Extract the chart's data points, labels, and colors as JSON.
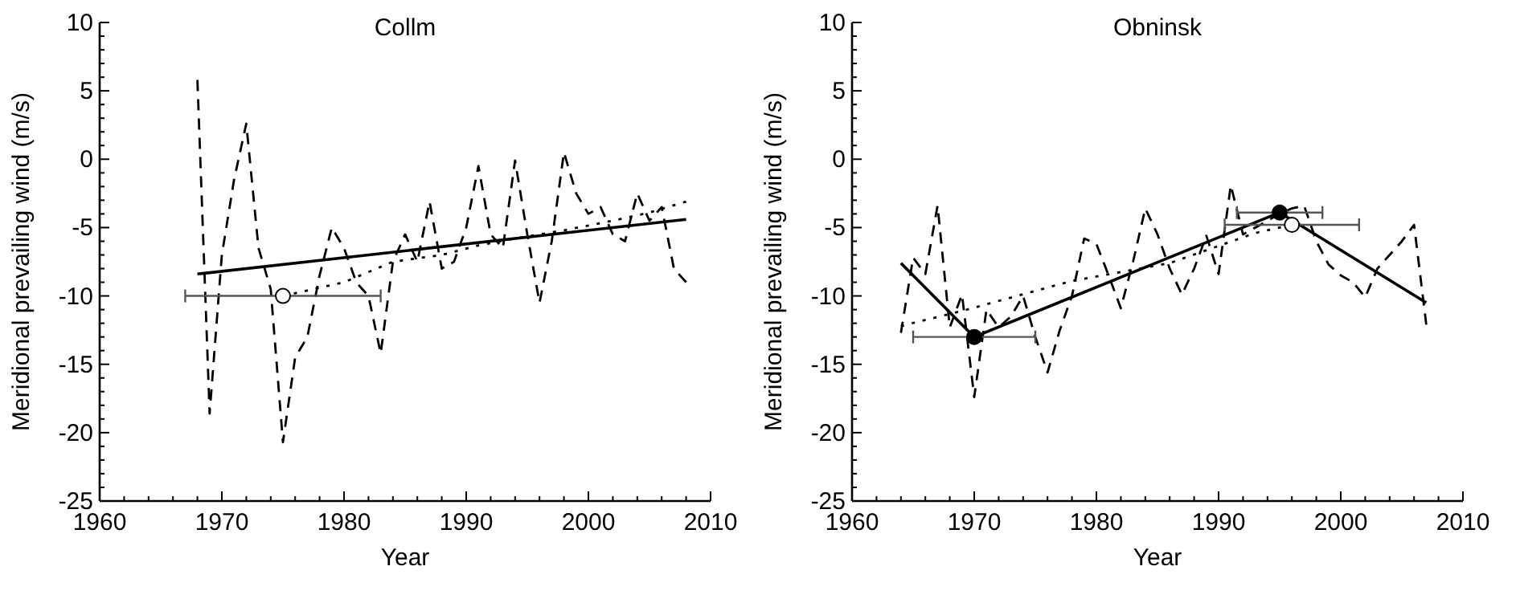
{
  "chart_data": [
    {
      "type": "line",
      "title": "Collm",
      "xlabel": "Year",
      "ylabel": "Meridional prevailing wind (m/s)",
      "xlim": [
        1960,
        2010
      ],
      "ylim": [
        -25,
        10
      ],
      "xticks": [
        1960,
        {
          "value": 1962,
          "label": null
        },
        {
          "value": 1964,
          "label": null
        },
        {
          "value": 1966,
          "label": null
        },
        {
          "value": 1968,
          "label": null
        },
        1970,
        {
          "value": 1972,
          "label": null
        },
        {
          "value": 1974,
          "label": null
        },
        {
          "value": 1976,
          "label": null
        },
        {
          "value": 1978,
          "label": null
        },
        1980,
        {
          "value": 1982,
          "label": null
        },
        {
          "value": 1984,
          "label": null
        },
        {
          "value": 1986,
          "label": null
        },
        {
          "value": 1988,
          "label": null
        },
        1990,
        {
          "value": 1992,
          "label": null
        },
        {
          "value": 1994,
          "label": null
        },
        {
          "value": 1996,
          "label": null
        },
        {
          "value": 1998,
          "label": null
        },
        2000,
        {
          "value": 2002,
          "label": null
        },
        {
          "value": 2004,
          "label": null
        },
        {
          "value": 2006,
          "label": null
        },
        {
          "value": 2008,
          "label": null
        },
        2010
      ],
      "yticks": [
        -25,
        {
          "value": -24,
          "label": null
        },
        {
          "value": -23,
          "label": null
        },
        {
          "value": -22,
          "label": null
        },
        {
          "value": -21,
          "label": null
        },
        -20,
        {
          "value": -19,
          "label": null
        },
        {
          "value": -18,
          "label": null
        },
        {
          "value": -17,
          "label": null
        },
        {
          "value": -16,
          "label": null
        },
        -15,
        {
          "value": -14,
          "label": null
        },
        {
          "value": -13,
          "label": null
        },
        {
          "value": -12,
          "label": null
        },
        {
          "value": -11,
          "label": null
        },
        -10,
        {
          "value": -9,
          "label": null
        },
        {
          "value": -8,
          "label": null
        },
        {
          "value": -7,
          "label": null
        },
        {
          "value": -6,
          "label": null
        },
        -5,
        {
          "value": -4,
          "label": null
        },
        {
          "value": -3,
          "label": null
        },
        {
          "value": -2,
          "label": null
        },
        {
          "value": -1,
          "label": null
        },
        0,
        {
          "value": 1,
          "label": null
        },
        {
          "value": 2,
          "label": null
        },
        {
          "value": 3,
          "label": null
        },
        {
          "value": 4,
          "label": null
        },
        5,
        {
          "value": 6,
          "label": null
        },
        {
          "value": 7,
          "label": null
        },
        {
          "value": 8,
          "label": null
        },
        {
          "value": 9,
          "label": null
        },
        10
      ],
      "series": [
        {
          "type": "line",
          "line_style": "dashed",
          "color": "#000000",
          "x": [
            1968,
            1969,
            1970,
            1971,
            1972,
            1973,
            1974,
            1975,
            1976,
            1977,
            1978,
            1979,
            1980,
            1981,
            1982,
            1983,
            1984,
            1985,
            1986,
            1987,
            1988,
            1989,
            1990,
            1991,
            1992,
            1993,
            1994,
            1995,
            1996,
            1997,
            1998,
            1999,
            2000,
            2001,
            2002,
            2003,
            2004,
            2005,
            2006,
            2007,
            2008
          ],
          "values": [
            5.8,
            -18.6,
            -7,
            -1.5,
            2.6,
            -6.5,
            -9.5,
            -20.7,
            -14.5,
            -13,
            -8.5,
            -5,
            -6.5,
            -9,
            -10,
            -14.2,
            -7.5,
            -5.5,
            -7.5,
            -3.1,
            -8,
            -7.5,
            -5,
            -0.5,
            -5.5,
            -6.5,
            -0.1,
            -5.5,
            -10.5,
            -6,
            0.5,
            -2.5,
            -4,
            -3.5,
            -5.5,
            -6,
            -2.5,
            -4.5,
            -3.5,
            -8,
            -9
          ]
        },
        {
          "type": "line",
          "line_style": "dotted",
          "color": "#000000",
          "x": [
            1975,
            1980,
            1984,
            1988,
            1991,
            1994,
            1998,
            2002,
            2005,
            2008
          ],
          "values": [
            -10,
            -9,
            -7.5,
            -7,
            -6.3,
            -5.8,
            -5.2,
            -4.5,
            -3.9,
            -3.1
          ]
        },
        {
          "type": "line",
          "line_style": "solid",
          "color": "#000000",
          "x": [
            1968,
            2008
          ],
          "values": [
            -8.4,
            -4.4
          ]
        },
        {
          "type": "scatter",
          "marker": "circle",
          "color": "#ffffff",
          "x": [
            1975
          ],
          "values": [
            -10
          ],
          "xerrors": [
            8
          ]
        }
      ]
    },
    {
      "type": "line",
      "title": "Obninsk",
      "xlabel": "Year",
      "ylabel": "Meridional prevailing wind (m/s)",
      "xlim": [
        1960,
        2010
      ],
      "ylim": [
        -25,
        10
      ],
      "xticks": [
        1960,
        {
          "value": 1962,
          "label": null
        },
        {
          "value": 1964,
          "label": null
        },
        {
          "value": 1966,
          "label": null
        },
        {
          "value": 1968,
          "label": null
        },
        1970,
        {
          "value": 1972,
          "label": null
        },
        {
          "value": 1974,
          "label": null
        },
        {
          "value": 1976,
          "label": null
        },
        {
          "value": 1978,
          "label": null
        },
        1980,
        {
          "value": 1982,
          "label": null
        },
        {
          "value": 1984,
          "label": null
        },
        {
          "value": 1986,
          "label": null
        },
        {
          "value": 1988,
          "label": null
        },
        1990,
        {
          "value": 1992,
          "label": null
        },
        {
          "value": 1994,
          "label": null
        },
        {
          "value": 1996,
          "label": null
        },
        {
          "value": 1998,
          "label": null
        },
        2000,
        {
          "value": 2002,
          "label": null
        },
        {
          "value": 2004,
          "label": null
        },
        {
          "value": 2006,
          "label": null
        },
        {
          "value": 2008,
          "label": null
        },
        2010
      ],
      "yticks": [
        -25,
        {
          "value": -24,
          "label": null
        },
        {
          "value": -23,
          "label": null
        },
        {
          "value": -22,
          "label": null
        },
        {
          "value": -21,
          "label": null
        },
        -20,
        {
          "value": -19,
          "label": null
        },
        {
          "value": -18,
          "label": null
        },
        {
          "value": -17,
          "label": null
        },
        {
          "value": -16,
          "label": null
        },
        -15,
        {
          "value": -14,
          "label": null
        },
        {
          "value": -13,
          "label": null
        },
        {
          "value": -12,
          "label": null
        },
        {
          "value": -11,
          "label": null
        },
        -10,
        {
          "value": -9,
          "label": null
        },
        {
          "value": -8,
          "label": null
        },
        {
          "value": -7,
          "label": null
        },
        {
          "value": -6,
          "label": null
        },
        -5,
        {
          "value": -4,
          "label": null
        },
        {
          "value": -3,
          "label": null
        },
        {
          "value": -2,
          "label": null
        },
        {
          "value": -1,
          "label": null
        },
        0,
        {
          "value": 1,
          "label": null
        },
        {
          "value": 2,
          "label": null
        },
        {
          "value": 3,
          "label": null
        },
        {
          "value": 4,
          "label": null
        },
        5,
        {
          "value": 6,
          "label": null
        },
        {
          "value": 7,
          "label": null
        },
        {
          "value": 8,
          "label": null
        },
        {
          "value": 9,
          "label": null
        },
        10
      ],
      "series": [
        {
          "type": "line",
          "line_style": "dashed",
          "color": "#000000",
          "x": [
            1964,
            1965,
            1966,
            1967,
            1968,
            1969,
            1970,
            1971,
            1972,
            1973,
            1974,
            1975,
            1976,
            1977,
            1978,
            1979,
            1980,
            1981,
            1982,
            1983,
            1984,
            1985,
            1986,
            1987,
            1988,
            1989,
            1990,
            1991,
            1992,
            1993,
            1994,
            1995,
            1996,
            1997,
            1998,
            1999,
            2000,
            2001,
            2002,
            2003,
            2004,
            2005,
            2006,
            2007
          ],
          "values": [
            -12.7,
            -7.2,
            -8.4,
            -3.4,
            -12.3,
            -9.9,
            -17.4,
            -11,
            -12.3,
            -11.5,
            -10,
            -13,
            -15.6,
            -12.5,
            -10,
            -5.8,
            -6.2,
            -8.5,
            -10.9,
            -7.5,
            -3.6,
            -5.5,
            -8,
            -9.9,
            -8,
            -5.6,
            -8.4,
            -1.9,
            -5.5,
            -5,
            -4.5,
            -4,
            -3.6,
            -3.4,
            -6,
            -7.7,
            -8.5,
            -9,
            -10.1,
            -8,
            -7,
            -6,
            -4.8,
            -12.1
          ]
        },
        {
          "type": "line",
          "line_style": "dotted",
          "color": "#000000",
          "x": [
            1964,
            1969,
            1978,
            1986,
            1993,
            1996
          ],
          "values": [
            -12.2,
            -11.1,
            -8.9,
            -7.6,
            -5.4,
            -4.8
          ]
        },
        {
          "type": "line",
          "line_style": "solid",
          "color": "#000000",
          "x": [
            1964,
            1970,
            1995,
            2007
          ],
          "values": [
            -7.6,
            -13,
            -3.9,
            -10.5
          ]
        },
        {
          "type": "scatter",
          "marker": "circle",
          "color": "#000000",
          "x": [
            1970,
            1995
          ],
          "values": [
            -13,
            -3.9
          ],
          "xerrors": [
            5,
            3.5
          ]
        },
        {
          "type": "scatter",
          "marker": "circle",
          "color": "#ffffff",
          "x": [
            1996
          ],
          "values": [
            -4.8
          ],
          "xerrors": [
            5.5
          ]
        }
      ]
    }
  ]
}
